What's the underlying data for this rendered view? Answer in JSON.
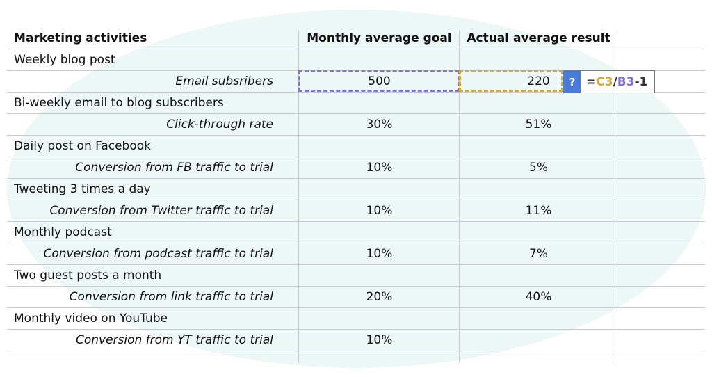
{
  "headers": {
    "activity": "Marketing activities",
    "goal": "Monthly average goal",
    "result": "Actual average result"
  },
  "rows": [
    {
      "label": "Weekly blog post",
      "sub": false,
      "goal": "",
      "result": ""
    },
    {
      "label": "Email subsribers",
      "sub": true,
      "goal": "500",
      "result": "220"
    },
    {
      "label": "Bi-weekly email to blog subscribers",
      "sub": false,
      "goal": "",
      "result": ""
    },
    {
      "label": "Click-through rate",
      "sub": true,
      "goal": "30%",
      "result": "51%"
    },
    {
      "label": "Daily post on Facebook",
      "sub": false,
      "goal": "",
      "result": ""
    },
    {
      "label": "Conversion from FB traffic to trial",
      "sub": true,
      "goal": "10%",
      "result": "5%"
    },
    {
      "label": "Tweeting 3 times a day",
      "sub": false,
      "goal": "",
      "result": ""
    },
    {
      "label": "Conversion from Twitter traffic to trial",
      "sub": true,
      "goal": "10%",
      "result": "11%"
    },
    {
      "label": "Monthly podcast",
      "sub": false,
      "goal": "",
      "result": ""
    },
    {
      "label": "Conversion from podcast traffic to trial",
      "sub": true,
      "goal": "10%",
      "result": "7%"
    },
    {
      "label": "Two guest posts a month",
      "sub": false,
      "goal": "",
      "result": ""
    },
    {
      "label": "Conversion from link traffic to trial",
      "sub": true,
      "goal": "20%",
      "result": "40%"
    },
    {
      "label": "Monthly video on YouTube",
      "sub": false,
      "goal": "",
      "result": ""
    },
    {
      "label": "Conversion from YT traffic to trial",
      "sub": true,
      "goal": "10%",
      "result": ""
    }
  ],
  "formula": {
    "help": "?",
    "eq": "=",
    "ref1": "C3",
    "op": "/",
    "ref2": "B3",
    "tail": "-1"
  },
  "colors": {
    "goal_selection": "#8470d8",
    "result_selection": "#d9a92a",
    "formula_accent": "#4a7bd8"
  }
}
